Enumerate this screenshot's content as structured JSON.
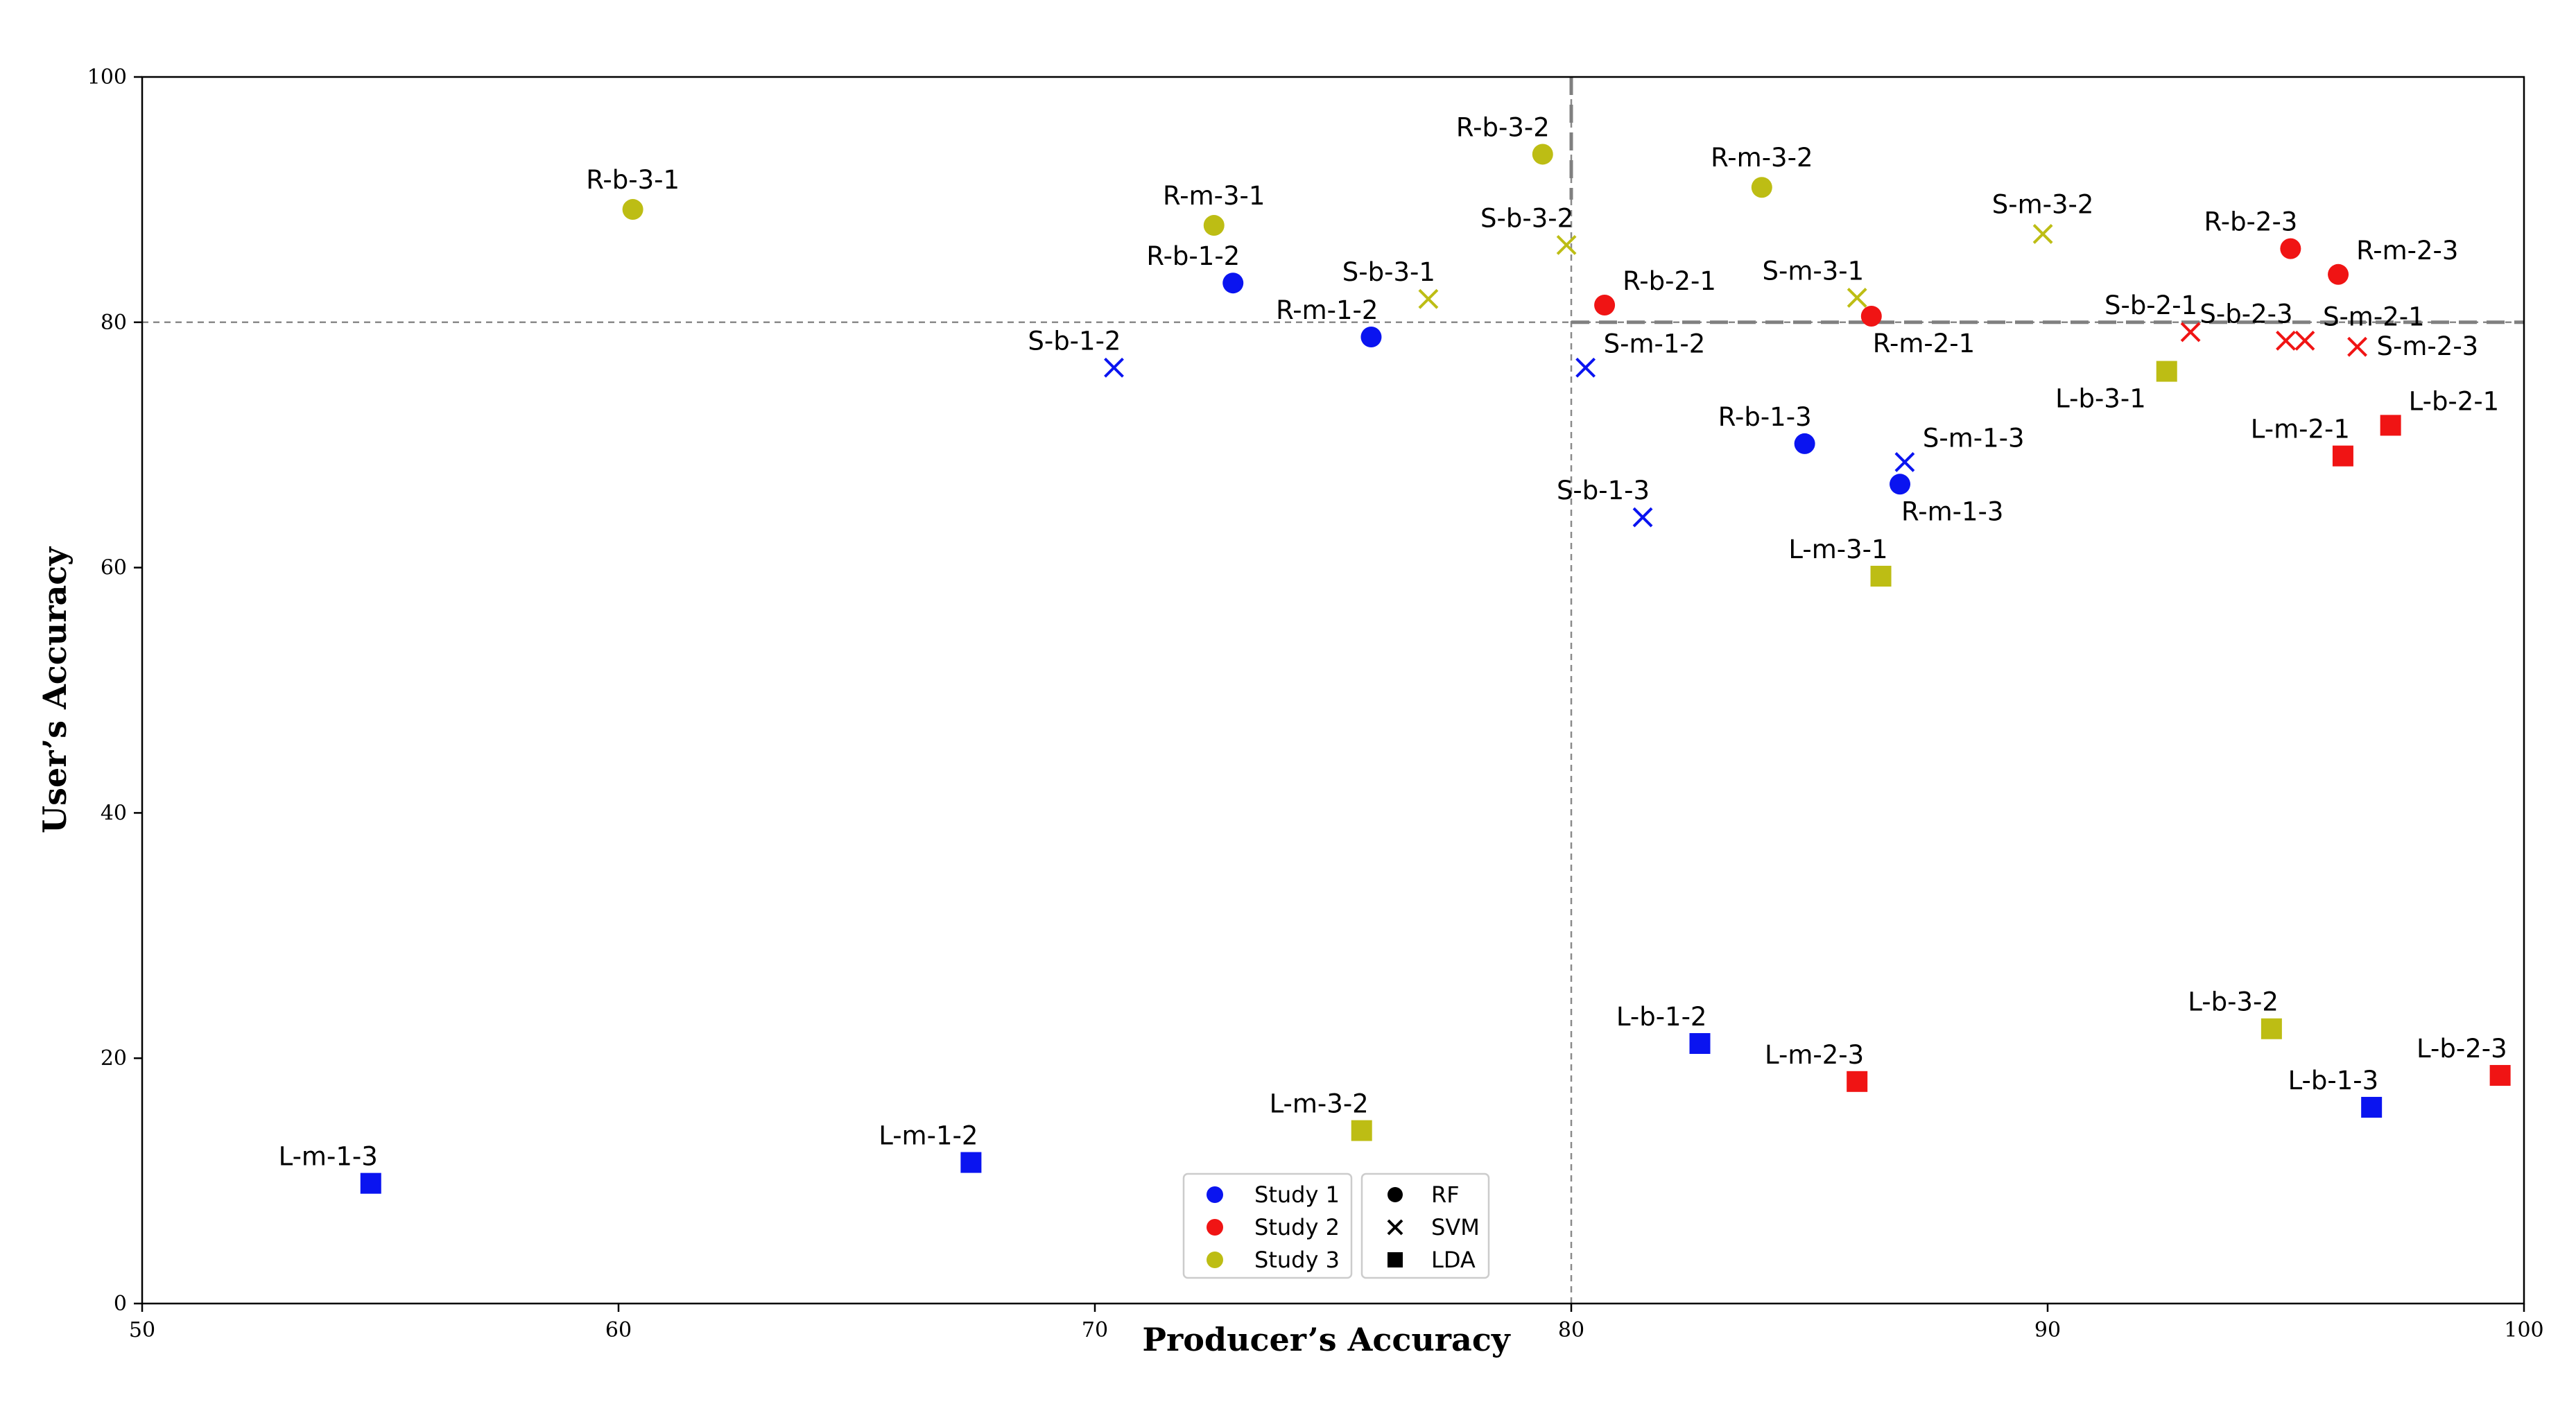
{
  "chart_data": {
    "type": "scatter",
    "xlabel": "Producer’s Accuracy",
    "ylabel": "User’s Accuracy",
    "xlim": [
      50,
      100
    ],
    "ylim": [
      0,
      100
    ],
    "xticks": [
      50,
      60,
      70,
      80,
      90,
      100
    ],
    "yticks": [
      0,
      20,
      40,
      60,
      80,
      100
    ],
    "reference_lines": {
      "x": 80,
      "y": 80
    },
    "colors": {
      "Study 1": "#0a14f0",
      "Study 2": "#f01414",
      "Study 3": "#bdbd14"
    },
    "legends": {
      "study": [
        {
          "label": "Study 1",
          "color": "#0a14f0"
        },
        {
          "label": "Study 2",
          "color": "#f01414"
        },
        {
          "label": "Study 3",
          "color": "#bdbd14"
        }
      ],
      "method": [
        {
          "label": "RF",
          "marker": "circle"
        },
        {
          "label": "SVM",
          "marker": "x"
        },
        {
          "label": "LDA",
          "marker": "square"
        }
      ]
    },
    "points": [
      {
        "label": "R-b-3-1",
        "x": 60.3,
        "y": 89.2,
        "study": "Study 3",
        "marker": "circle",
        "lpos": "above"
      },
      {
        "label": "R-m-3-1",
        "x": 72.5,
        "y": 87.9,
        "study": "Study 3",
        "marker": "circle",
        "lpos": "above"
      },
      {
        "label": "R-b-1-2",
        "x": 72.9,
        "y": 83.2,
        "study": "Study 1",
        "marker": "circle",
        "lpos": "above-left"
      },
      {
        "label": "R-m-1-2",
        "x": 75.8,
        "y": 78.8,
        "study": "Study 1",
        "marker": "circle",
        "lpos": "above-left"
      },
      {
        "label": "S-b-1-2",
        "x": 70.4,
        "y": 76.3,
        "study": "Study 1",
        "marker": "x",
        "lpos": "above-left"
      },
      {
        "label": "S-b-3-1",
        "x": 77.0,
        "y": 81.9,
        "study": "Study 3",
        "marker": "x",
        "lpos": "above-left"
      },
      {
        "label": "R-b-3-2",
        "x": 79.4,
        "y": 93.7,
        "study": "Study 3",
        "marker": "circle",
        "lpos": "above-left"
      },
      {
        "label": "S-b-3-2",
        "x": 79.9,
        "y": 86.3,
        "study": "Study 3",
        "marker": "x",
        "lpos": "above-left"
      },
      {
        "label": "R-b-2-1",
        "x": 80.7,
        "y": 81.4,
        "study": "Study 2",
        "marker": "circle",
        "lpos": "above-right"
      },
      {
        "label": "S-m-1-2",
        "x": 80.3,
        "y": 76.3,
        "study": "Study 1",
        "marker": "x",
        "lpos": "above-right"
      },
      {
        "label": "R-m-3-2",
        "x": 84.0,
        "y": 91.0,
        "study": "Study 3",
        "marker": "circle",
        "lpos": "above"
      },
      {
        "label": "S-m-3-1",
        "x": 86.0,
        "y": 82.0,
        "study": "Study 3",
        "marker": "x",
        "lpos": "above-left"
      },
      {
        "label": "R-m-2-1",
        "x": 86.3,
        "y": 80.5,
        "study": "Study 2",
        "marker": "circle",
        "lpos": "below-right"
      },
      {
        "label": "S-m-3-2",
        "x": 89.9,
        "y": 87.2,
        "study": "Study 3",
        "marker": "x",
        "lpos": "above"
      },
      {
        "label": "R-b-1-3",
        "x": 84.9,
        "y": 70.1,
        "study": "Study 1",
        "marker": "circle",
        "lpos": "above-left"
      },
      {
        "label": "S-m-1-3",
        "x": 87.0,
        "y": 68.6,
        "study": "Study 1",
        "marker": "x",
        "lpos": "above-right"
      },
      {
        "label": "R-m-1-3",
        "x": 86.9,
        "y": 66.8,
        "study": "Study 1",
        "marker": "circle",
        "lpos": "below-right"
      },
      {
        "label": "S-b-1-3",
        "x": 81.5,
        "y": 64.1,
        "study": "Study 1",
        "marker": "x",
        "lpos": "above-left"
      },
      {
        "label": "L-m-3-1",
        "x": 86.5,
        "y": 59.3,
        "study": "Study 3",
        "marker": "square",
        "lpos": "above-left"
      },
      {
        "label": "R-b-2-3",
        "x": 95.1,
        "y": 86.0,
        "study": "Study 2",
        "marker": "circle",
        "lpos": "above-left"
      },
      {
        "label": "R-m-2-3",
        "x": 96.1,
        "y": 83.9,
        "study": "Study 2",
        "marker": "circle",
        "lpos": "above-right"
      },
      {
        "label": "S-b-2-1",
        "x": 93.0,
        "y": 79.2,
        "study": "Study 2",
        "marker": "x",
        "lpos": "above-left"
      },
      {
        "label": "S-b-2-3",
        "x": 95.0,
        "y": 78.5,
        "study": "Study 2",
        "marker": "x",
        "lpos": "above-left"
      },
      {
        "label": "S-m-2-1",
        "x": 95.4,
        "y": 78.5,
        "study": "Study 2",
        "marker": "x",
        "lpos": "above-right"
      },
      {
        "label": "S-m-2-3",
        "x": 96.5,
        "y": 78.0,
        "study": "Study 2",
        "marker": "x",
        "lpos": "right"
      },
      {
        "label": "L-b-3-1",
        "x": 92.5,
        "y": 76.0,
        "study": "Study 3",
        "marker": "square",
        "lpos": "below-left"
      },
      {
        "label": "L-b-2-1",
        "x": 97.2,
        "y": 71.6,
        "study": "Study 2",
        "marker": "square",
        "lpos": "above-right"
      },
      {
        "label": "L-m-2-1",
        "x": 96.2,
        "y": 69.1,
        "study": "Study 2",
        "marker": "square",
        "lpos": "above-left"
      },
      {
        "label": "L-b-1-2",
        "x": 82.7,
        "y": 21.2,
        "study": "Study 1",
        "marker": "square",
        "lpos": "above-left"
      },
      {
        "label": "L-m-2-3",
        "x": 86.0,
        "y": 18.1,
        "study": "Study 2",
        "marker": "square",
        "lpos": "above-left"
      },
      {
        "label": "L-m-3-2",
        "x": 75.6,
        "y": 14.1,
        "study": "Study 3",
        "marker": "square",
        "lpos": "above-left"
      },
      {
        "label": "L-b-3-2",
        "x": 94.7,
        "y": 22.4,
        "study": "Study 3",
        "marker": "square",
        "lpos": "above-left"
      },
      {
        "label": "L-b-2-3",
        "x": 99.5,
        "y": 18.6,
        "study": "Study 2",
        "marker": "square",
        "lpos": "above-left"
      },
      {
        "label": "L-b-1-3",
        "x": 96.8,
        "y": 16.0,
        "study": "Study 1",
        "marker": "square",
        "lpos": "above-left"
      },
      {
        "label": "L-m-1-2",
        "x": 67.4,
        "y": 11.5,
        "study": "Study 1",
        "marker": "square",
        "lpos": "above-left"
      },
      {
        "label": "L-m-1-3",
        "x": 54.8,
        "y": 9.8,
        "study": "Study 1",
        "marker": "square",
        "lpos": "above-left"
      }
    ]
  }
}
